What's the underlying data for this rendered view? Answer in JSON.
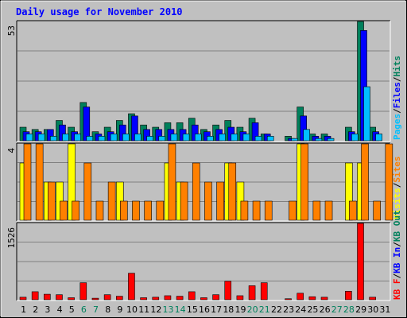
{
  "chart_data": [
    {
      "type": "bar",
      "title": "Daily usage for November 2010",
      "panel": "hits-files-pages",
      "y_max_label": "53",
      "ylim": [
        0,
        53
      ],
      "categories": [
        "1",
        "2",
        "3",
        "4",
        "5",
        "6",
        "7",
        "8",
        "9",
        "10",
        "11",
        "12",
        "13",
        "14",
        "15",
        "16",
        "17",
        "18",
        "19",
        "20",
        "21",
        "22",
        "23",
        "24",
        "25",
        "26",
        "27",
        "28",
        "29",
        "30",
        "31"
      ],
      "weekend_days": [
        "6",
        "7",
        "13",
        "14",
        "20",
        "21",
        "27",
        "28"
      ],
      "series": [
        {
          "name": "Hits",
          "color": "#00805c",
          "values": [
            6,
            5,
            5,
            9,
            6,
            17,
            4,
            6,
            9,
            12,
            7,
            6,
            8,
            8,
            10,
            5,
            7,
            9,
            6,
            10,
            3,
            0,
            2,
            15,
            3,
            3,
            0,
            6,
            53,
            6,
            0
          ]
        },
        {
          "name": "Files",
          "color": "#0000ff",
          "values": [
            4,
            4,
            5,
            7,
            4,
            15,
            3,
            4,
            7,
            11,
            5,
            5,
            5,
            5,
            7,
            4,
            5,
            6,
            4,
            8,
            3,
            0,
            1,
            11,
            2,
            2,
            0,
            4,
            49,
            4,
            0
          ]
        },
        {
          "name": "Pages",
          "color": "#00c0ff",
          "values": [
            3,
            3,
            2,
            3,
            3,
            2,
            2,
            3,
            3,
            3,
            2,
            2,
            3,
            3,
            3,
            2,
            3,
            3,
            3,
            2,
            2,
            0,
            1,
            5,
            1,
            1,
            0,
            3,
            24,
            3,
            0
          ]
        }
      ],
      "legend": [
        "Pages",
        "Files",
        "Hits"
      ]
    },
    {
      "type": "bar",
      "panel": "sites-visits",
      "y_max_label": "4",
      "ylim": [
        0,
        4
      ],
      "categories": [
        "1",
        "2",
        "3",
        "4",
        "5",
        "6",
        "7",
        "8",
        "9",
        "10",
        "11",
        "12",
        "13",
        "14",
        "15",
        "16",
        "17",
        "18",
        "19",
        "20",
        "21",
        "22",
        "23",
        "24",
        "25",
        "26",
        "27",
        "28",
        "29",
        "30",
        "31"
      ],
      "series": [
        {
          "name": "Visits",
          "color": "#ffff00",
          "values": [
            3,
            0,
            2,
            2,
            4,
            0,
            0,
            0,
            2,
            0,
            0,
            0,
            3,
            2,
            0,
            0,
            0,
            3,
            2,
            0,
            0,
            0,
            0,
            4,
            0,
            0,
            0,
            3,
            3,
            0,
            0
          ]
        },
        {
          "name": "Sites",
          "color": "#ff8000",
          "values": [
            4,
            4,
            2,
            1,
            1,
            3,
            1,
            2,
            1,
            1,
            1,
            1,
            4,
            2,
            3,
            2,
            2,
            3,
            1,
            1,
            1,
            0,
            1,
            4,
            1,
            1,
            0,
            1,
            4,
            1,
            4
          ]
        }
      ],
      "legend": [
        "Visits",
        "Sites"
      ]
    },
    {
      "type": "bar",
      "panel": "kbytes",
      "y_max_label": "1526",
      "ylim": [
        0,
        1526
      ],
      "categories": [
        "1",
        "2",
        "3",
        "4",
        "5",
        "6",
        "7",
        "8",
        "9",
        "10",
        "11",
        "12",
        "13",
        "14",
        "15",
        "16",
        "17",
        "18",
        "19",
        "20",
        "21",
        "22",
        "23",
        "24",
        "25",
        "26",
        "27",
        "28",
        "29",
        "30",
        "31"
      ],
      "series": [
        {
          "name": "KB F",
          "color": "#ff0000",
          "values": [
            50,
            160,
            110,
            100,
            40,
            340,
            30,
            100,
            70,
            530,
            40,
            50,
            80,
            70,
            160,
            40,
            100,
            370,
            80,
            280,
            340,
            0,
            20,
            130,
            60,
            50,
            0,
            170,
            1526,
            50,
            0
          ]
        }
      ],
      "legend": [
        "KB F",
        "KB In",
        "KB Out"
      ],
      "legend_colors": [
        "#ff0000",
        "#0000ff",
        "#00805c"
      ]
    }
  ]
}
